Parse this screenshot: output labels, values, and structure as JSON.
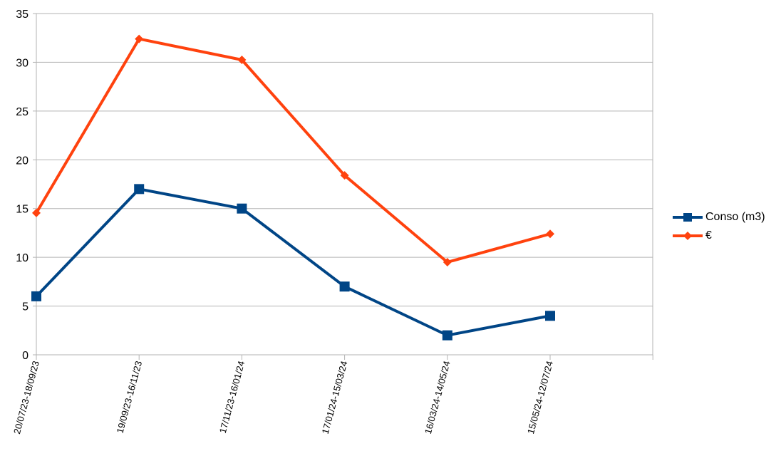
{
  "chart_data": {
    "type": "line",
    "categories": [
      "20/07/23-18/09/23",
      "19/09/23-16/11/23",
      "17/11/23-16/01/24",
      "17/01/24-15/03/24",
      "16/03/24-14/05/24",
      "15/05/24-12/07/24"
    ],
    "series": [
      {
        "name": "Conso (m3)",
        "values": [
          6,
          17,
          15,
          7,
          2,
          4
        ],
        "color": "#004586",
        "marker": "square"
      },
      {
        "name": "€",
        "values": [
          14.55,
          32.4,
          30.25,
          18.4,
          9.5,
          12.4
        ],
        "color": "#ff420e",
        "marker": "diamond"
      }
    ],
    "title": "",
    "xlabel": "",
    "ylabel": "",
    "ylim": [
      0,
      35
    ],
    "yticks": [
      "0",
      "5",
      "10",
      "15",
      "20",
      "25",
      "30",
      "35"
    ],
    "grid": true,
    "legend_position": "right"
  }
}
